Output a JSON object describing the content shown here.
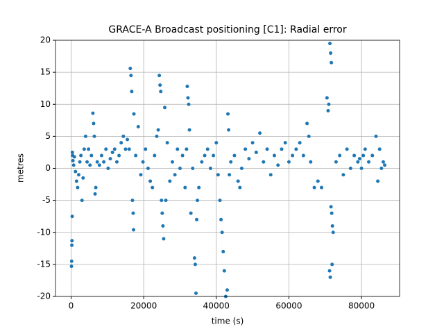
{
  "chart_data": {
    "type": "scatter",
    "title": "GRACE-A Broadcast positioning [C1]: Radial error",
    "x_label": "time (s)",
    "y_label": "metres",
    "grid": true,
    "xlim": [
      -4300,
      90500
    ],
    "ylim": [
      -20,
      20
    ],
    "xticks": [
      0,
      20000,
      40000,
      60000,
      80000
    ],
    "yticks": [
      -20,
      -15,
      -10,
      -5,
      0,
      5,
      10,
      15,
      20
    ],
    "x": [
      100,
      150,
      200,
      250,
      300,
      350,
      400,
      500,
      700,
      900,
      1200,
      1500,
      1800,
      2100,
      2400,
      2700,
      3000,
      3300,
      3600,
      4000,
      4400,
      4800,
      5200,
      5600,
      6000,
      6200,
      6400,
      6600,
      6800,
      7200,
      7800,
      8400,
      9000,
      9600,
      10200,
      10800,
      11400,
      12000,
      12600,
      13200,
      13800,
      14400,
      15000,
      15500,
      16000,
      16300,
      16500,
      16700,
      16900,
      17100,
      17200,
      17300,
      17800,
      18500,
      19200,
      19800,
      20500,
      21200,
      21800,
      22400,
      23000,
      23600,
      24000,
      24300,
      24500,
      24700,
      24900,
      25100,
      25300,
      25500,
      25800,
      26100,
      26500,
      27200,
      27900,
      28600,
      29300,
      30000,
      30700,
      31400,
      31800,
      32000,
      32200,
      32400,
      32600,
      33000,
      33500,
      34000,
      34200,
      34400,
      34600,
      34800,
      35200,
      36000,
      36800,
      37600,
      38400,
      39200,
      40000,
      40500,
      41000,
      41300,
      41600,
      41900,
      42200,
      42600,
      43000,
      43200,
      43400,
      43600,
      44000,
      45000,
      46000,
      46500,
      47000,
      48000,
      49000,
      50000,
      51000,
      52000,
      53000,
      54000,
      55000,
      56000,
      57000,
      58000,
      59000,
      60000,
      61000,
      62000,
      63000,
      64000,
      65000,
      65500,
      66000,
      67000,
      68000,
      69000,
      70500,
      70800,
      71000,
      71300,
      71500,
      71700,
      71900,
      71200,
      71400,
      71600,
      71800,
      72000,
      72200,
      73000,
      74000,
      75000,
      76000,
      77000,
      78000,
      79000,
      80000,
      81000,
      82000,
      83000,
      84000,
      84500,
      85000,
      85500,
      86000,
      86400,
      80500,
      79500
    ],
    "series": [
      {
        "color": "#1f77b4",
        "values": [
          -15.3,
          -14.5,
          -12,
          -11.3,
          -7.5,
          2.5,
          2,
          1.2,
          0.5,
          1.8,
          -0.5,
          -2,
          -3,
          -1,
          1,
          2,
          -5,
          -1.5,
          3,
          5,
          1,
          3,
          0.5,
          2,
          8.6,
          7,
          5,
          -4,
          -3,
          1,
          0.5,
          2,
          1,
          3,
          0,
          1.5,
          2.5,
          3,
          1,
          2,
          4,
          5,
          3,
          4.5,
          3,
          15.6,
          14.5,
          12,
          -5,
          -7,
          -9.6,
          8.5,
          2,
          6.5,
          -1,
          1,
          3,
          0,
          -2,
          -3,
          2,
          5,
          6,
          14.5,
          13,
          12,
          -5,
          -7,
          -9,
          -11,
          9.5,
          -5,
          4,
          -2,
          1,
          -1,
          3,
          0,
          2,
          -3,
          3,
          12.8,
          11,
          10,
          6,
          -7,
          0,
          -14,
          -15,
          -19.5,
          -8,
          -5,
          -3,
          1,
          2,
          3,
          0,
          2,
          4,
          -1,
          -5,
          -8,
          -10,
          -13,
          -16,
          -20,
          -19,
          8.5,
          6,
          -1,
          1,
          2,
          -2,
          -3,
          0,
          3,
          1.5,
          4,
          2.5,
          5.5,
          1,
          3,
          -1,
          2,
          0.5,
          3,
          4,
          1,
          2,
          3,
          4,
          2,
          7,
          5,
          1,
          -3,
          -2,
          -3,
          11,
          9,
          10,
          19.5,
          18,
          16.5,
          -15,
          -16,
          -17,
          -6,
          -7,
          -9,
          -10,
          1,
          2,
          -1,
          3,
          0,
          2,
          1,
          0,
          3,
          1,
          2,
          5,
          -2,
          3,
          0,
          1,
          0.5,
          2,
          1.5
        ]
      }
    ]
  }
}
